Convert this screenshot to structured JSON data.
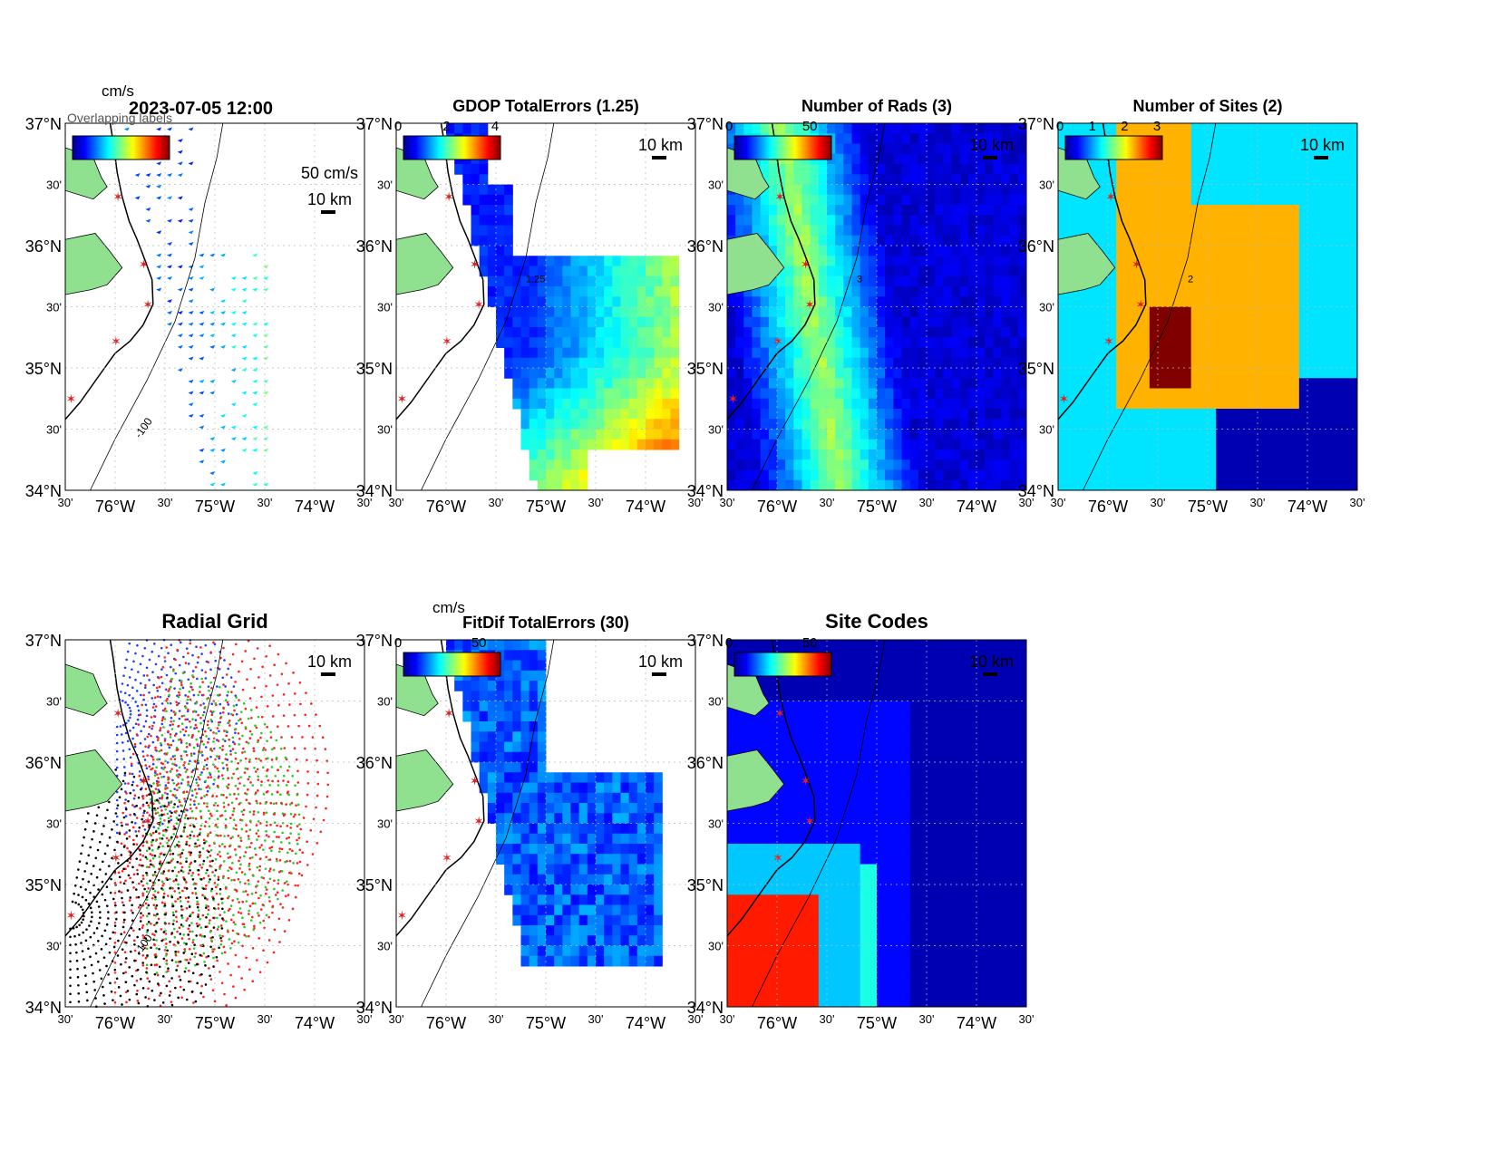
{
  "figure": {
    "timestamp": "2023-07-05 12:00",
    "overlap_text": "Overlapping labels",
    "speed_unit": "cm/s",
    "scale_arrow_label": "50 cm/s",
    "scale_bar_label": "10 km",
    "isobath_label": "-100"
  },
  "axes": {
    "lat_ticks": [
      "37°N",
      "30'",
      "36°N",
      "30'",
      "35°N",
      "30'",
      "34°N"
    ],
    "lon_ticks": [
      "30'",
      "76°W",
      "30'",
      "75°W",
      "30'",
      "74°W",
      "30'"
    ],
    "xlim": [
      -76.5,
      -73.5
    ],
    "ylim": [
      34.0,
      37.0
    ]
  },
  "chart_data": [
    {
      "type": "heatmap",
      "title": "",
      "colorbar_label": "cm/s",
      "colorbar_ticks": [],
      "description": "current vectors",
      "sites": [
        [
          36.4,
          -75.98
        ],
        [
          35.85,
          -75.72
        ],
        [
          35.52,
          -75.68
        ],
        [
          35.22,
          -76.0
        ],
        [
          34.75,
          -76.45
        ]
      ]
    },
    {
      "type": "heatmap",
      "title": "GDOP TotalErrors (1.25)",
      "colorbar_ticks": [
        "0",
        "2",
        "4"
      ],
      "colorbar_range": [
        0,
        4
      ],
      "contour_level": 1.25,
      "contour_label": "1.25"
    },
    {
      "type": "heatmap",
      "title": "Number of Rads (3)",
      "colorbar_ticks": [
        "0",
        "50"
      ],
      "colorbar_range": [
        0,
        60
      ],
      "contour_level": 3,
      "contour_label": "3"
    },
    {
      "type": "heatmap",
      "title": "Number of Sites (2)",
      "colorbar_ticks": [
        "0",
        "1",
        "2",
        "3"
      ],
      "colorbar_range": [
        0,
        3
      ],
      "contour_level": 2,
      "contour_label": "2"
    },
    {
      "type": "scatter",
      "title": "Radial Grid",
      "series_colors": [
        "#2040ff",
        "#ff2020",
        "#20d020",
        "#ff2020",
        "#000000"
      ]
    },
    {
      "type": "heatmap",
      "title": "FitDif TotalErrors (30)",
      "colorbar_label": "cm/s",
      "colorbar_ticks": [
        "0",
        "50"
      ],
      "colorbar_range": [
        0,
        60
      ]
    },
    {
      "type": "heatmap",
      "title": "Site Codes",
      "colorbar_ticks": [
        "0",
        "50"
      ],
      "colorbar_range": [
        0,
        60
      ]
    }
  ],
  "colors": {
    "land": "#8fe08f",
    "site_marker": "#e02020",
    "axis": "#000000",
    "grid": "#bbbbbb"
  }
}
